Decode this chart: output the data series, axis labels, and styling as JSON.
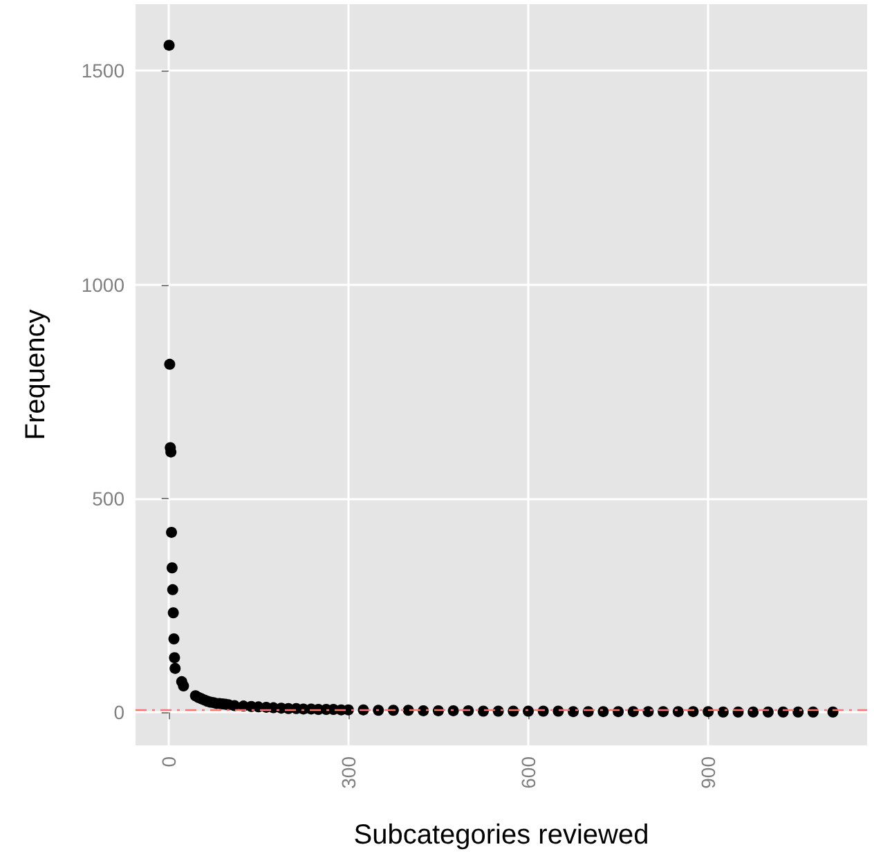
{
  "chart_data": {
    "type": "scatter",
    "xlabel": "Subcategories reviewed",
    "ylabel": "Frequency",
    "x": [
      1,
      2,
      3,
      4,
      5,
      6,
      7,
      8,
      9,
      10,
      11,
      22,
      25,
      45,
      50,
      55,
      60,
      65,
      70,
      75,
      80,
      85,
      90,
      95,
      100,
      110,
      125,
      138,
      150,
      163,
      175,
      188,
      200,
      213,
      225,
      238,
      250,
      263,
      275,
      288,
      300,
      325,
      350,
      375,
      400,
      425,
      450,
      475,
      500,
      525,
      550,
      575,
      600,
      625,
      650,
      675,
      700,
      725,
      750,
      775,
      800,
      825,
      850,
      875,
      900,
      925,
      950,
      975,
      1000,
      1025,
      1050,
      1075,
      1108
    ],
    "series": [
      {
        "color": "#000000",
        "values": [
          1560,
          814,
          619,
          609,
          421,
          338,
          287,
          233,
          172,
          128,
          103,
          72,
          62,
          39,
          35,
          32,
          29,
          26,
          24,
          23,
          21,
          21,
          20,
          19,
          18,
          16,
          15,
          14,
          13,
          12,
          11,
          10,
          9,
          9,
          8,
          8,
          7,
          7,
          7,
          6,
          6,
          6,
          5,
          5,
          5,
          4,
          4,
          4,
          4,
          3,
          3,
          3,
          3,
          3,
          3,
          2,
          2,
          2,
          2,
          2,
          2,
          2,
          2,
          2,
          2,
          1,
          1,
          1,
          1,
          1,
          1,
          1,
          1
        ]
      }
    ],
    "xlim": [
      -55,
      1165
    ],
    "ylim": [
      -77,
      1656
    ],
    "xticks": [
      0,
      300,
      600,
      900
    ],
    "yticks": [
      0,
      500,
      1000,
      1500
    ],
    "ref_lines": [
      {
        "axis": "y",
        "value": 5,
        "color": "#f8766d",
        "line_style": "dashed"
      }
    ],
    "grid": true,
    "marker": "circle"
  }
}
